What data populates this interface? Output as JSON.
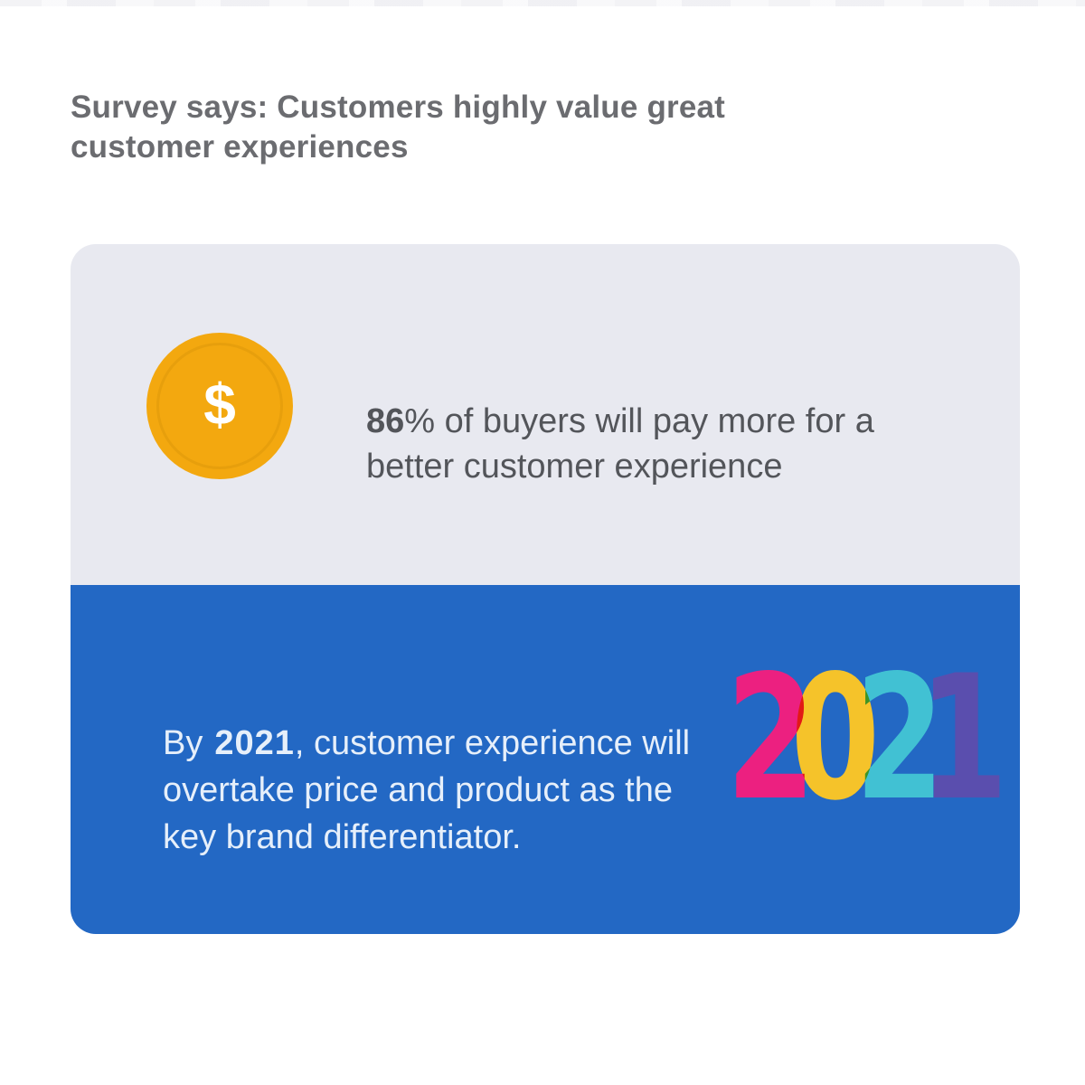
{
  "heading": "Survey says: Customers highly value great customer experiences",
  "stat_top": {
    "coin_symbol": "$",
    "value": "86",
    "percent_sign": "%",
    "text_rest": " of buyers will pay more for a better customer experience"
  },
  "stat_bottom": {
    "prefix": "By",
    "year": "2021",
    "text_rest": ", customer experience will overtake price and product as the key brand differentiator.",
    "year_graphic": {
      "digits": [
        "2",
        "0",
        "2",
        "1"
      ],
      "digit_colors": [
        "#EC2080",
        "#F5C32A",
        "#41C1D3",
        "#5A4EAE"
      ]
    }
  },
  "colors": {
    "heading_text": "#6B6C70",
    "stat_text": "#53555A",
    "card_top_bg": "#E8E9F0",
    "card_bottom_bg": "#2368C4",
    "coin_fill": "#F3A80F",
    "bottom_text": "#E6EFFA"
  }
}
